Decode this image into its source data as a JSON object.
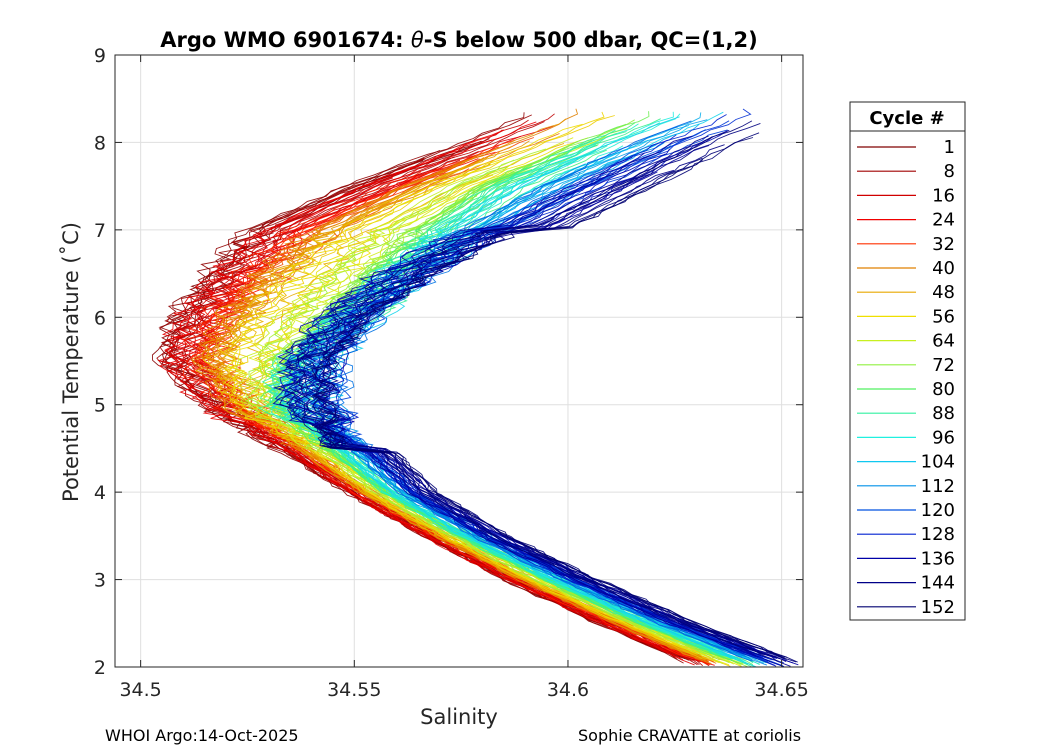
{
  "chart_data": {
    "type": "line",
    "title_prefix": "Argo WMO 6901674: ",
    "title_symbol": "θ",
    "title_suffix": "-S below 500 dbar,  QC=(1,2)",
    "xlabel": "Salinity",
    "ylabel": "Potential Temperature (˚C)",
    "xlim": [
      34.494,
      34.655
    ],
    "ylim": [
      2,
      9
    ],
    "xticks": [
      34.5,
      34.55,
      34.6,
      34.65
    ],
    "xtick_labels": [
      "34.5",
      "34.55",
      "34.6",
      "34.65"
    ],
    "yticks": [
      2,
      3,
      4,
      5,
      6,
      7,
      8,
      9
    ],
    "ytick_labels": [
      "2",
      "3",
      "4",
      "5",
      "6",
      "7",
      "8",
      "9"
    ],
    "grid": true,
    "legend_title": "Cycle #",
    "legend_position": "outside-right",
    "series": [
      {
        "name": "1",
        "color": "#800000"
      },
      {
        "name": "8",
        "color": "#a00000"
      },
      {
        "name": "16",
        "color": "#d00000"
      },
      {
        "name": "24",
        "color": "#f00000"
      },
      {
        "name": "32",
        "color": "#ff3000"
      },
      {
        "name": "40",
        "color": "#e08000"
      },
      {
        "name": "48",
        "color": "#e8a800"
      },
      {
        "name": "56",
        "color": "#f0e000"
      },
      {
        "name": "64",
        "color": "#c8f020"
      },
      {
        "name": "72",
        "color": "#90f040"
      },
      {
        "name": "80",
        "color": "#50f060"
      },
      {
        "name": "88",
        "color": "#30f0a0"
      },
      {
        "name": "96",
        "color": "#20f0e0"
      },
      {
        "name": "104",
        "color": "#10c8f0"
      },
      {
        "name": "112",
        "color": "#0090e8"
      },
      {
        "name": "120",
        "color": "#0050e0"
      },
      {
        "name": "128",
        "color": "#0020d0"
      },
      {
        "name": "136",
        "color": "#0000a8"
      },
      {
        "name": "144",
        "color": "#000088"
      },
      {
        "name": "152",
        "color": "#000070"
      }
    ],
    "profile_shape": {
      "theta": [
        2.0,
        2.5,
        3.0,
        3.5,
        4.0,
        4.5,
        5.0,
        5.5,
        6.0,
        6.5,
        7.0,
        7.5,
        8.0,
        8.3
      ],
      "salinity_cycle1": [
        34.63,
        34.607,
        34.585,
        34.566,
        34.548,
        34.532,
        34.515,
        34.505,
        34.508,
        34.515,
        34.525,
        34.548,
        34.575,
        34.59
      ],
      "salinity_cycle152": [
        34.655,
        34.628,
        34.605,
        34.584,
        34.567,
        34.557,
        34.55,
        34.551,
        34.56,
        34.575,
        34.595,
        34.615,
        34.635,
        34.65
      ]
    }
  },
  "footer": {
    "left": "WHOI Argo:14-Oct-2025",
    "right": "Sophie CRAVATTE at coriolis"
  }
}
